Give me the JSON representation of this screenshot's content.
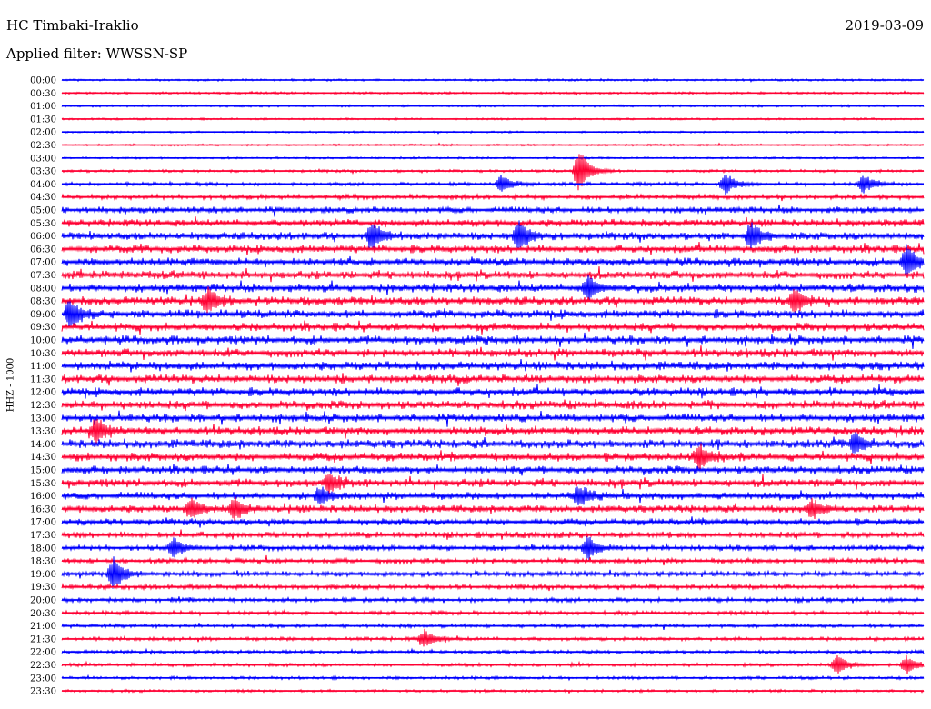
{
  "header": {
    "station": "HC Timbaki-Iraklio",
    "date": "2019-03-09",
    "filter": "Applied filter: WWSSN-SP"
  },
  "chart_data": {
    "type": "line",
    "title": "HC Timbaki-Iraklio",
    "ylabel": "HHZ - 1000",
    "row_labels": [
      "00:00",
      "00:30",
      "01:00",
      "01:30",
      "02:00",
      "02:30",
      "03:00",
      "03:30",
      "04:00",
      "04:30",
      "05:00",
      "05:30",
      "06:00",
      "06:30",
      "07:00",
      "07:30",
      "08:00",
      "08:30",
      "09:00",
      "09:30",
      "10:00",
      "10:30",
      "11:00",
      "11:30",
      "12:00",
      "12:30",
      "13:00",
      "13:30",
      "14:00",
      "14:30",
      "15:00",
      "15:30",
      "16:00",
      "16:30",
      "17:00",
      "17:30",
      "18:00",
      "18:30",
      "19:00",
      "19:30",
      "20:00",
      "20:30",
      "21:00",
      "21:30",
      "22:00",
      "22:30",
      "23:00",
      "23:30"
    ],
    "activity": [
      0.25,
      0.25,
      0.25,
      0.22,
      0.2,
      0.22,
      0.22,
      0.3,
      0.4,
      0.55,
      0.75,
      0.85,
      0.9,
      0.95,
      0.95,
      0.95,
      1.0,
      1.0,
      1.0,
      1.0,
      1.0,
      1.0,
      1.0,
      1.0,
      1.0,
      1.0,
      1.0,
      1.0,
      1.0,
      1.0,
      0.95,
      0.95,
      0.9,
      0.85,
      0.8,
      0.75,
      0.65,
      0.6,
      0.6,
      0.55,
      0.5,
      0.45,
      0.42,
      0.4,
      0.38,
      0.38,
      0.35,
      0.3
    ],
    "events": [
      {
        "row": 7,
        "x": 0.6,
        "amp": 3.2
      },
      {
        "row": 8,
        "x": 0.77,
        "amp": 1.5
      },
      {
        "row": 8,
        "x": 0.51,
        "amp": 1.3
      },
      {
        "row": 8,
        "x": 0.93,
        "amp": 1.3
      },
      {
        "row": 12,
        "x": 0.36,
        "amp": 2.0
      },
      {
        "row": 12,
        "x": 0.53,
        "amp": 2.2
      },
      {
        "row": 12,
        "x": 0.8,
        "amp": 2.0
      },
      {
        "row": 14,
        "x": 0.98,
        "amp": 2.2
      },
      {
        "row": 16,
        "x": 0.61,
        "amp": 1.8
      },
      {
        "row": 17,
        "x": 0.17,
        "amp": 1.8
      },
      {
        "row": 17,
        "x": 0.85,
        "amp": 1.8
      },
      {
        "row": 18,
        "x": 0.01,
        "amp": 2.0
      },
      {
        "row": 27,
        "x": 0.04,
        "amp": 1.6
      },
      {
        "row": 28,
        "x": 0.92,
        "amp": 1.5
      },
      {
        "row": 29,
        "x": 0.74,
        "amp": 1.8
      },
      {
        "row": 31,
        "x": 0.31,
        "amp": 1.3
      },
      {
        "row": 32,
        "x": 0.3,
        "amp": 1.3
      },
      {
        "row": 32,
        "x": 0.6,
        "amp": 1.4
      },
      {
        "row": 33,
        "x": 0.15,
        "amp": 1.6
      },
      {
        "row": 33,
        "x": 0.2,
        "amp": 1.6
      },
      {
        "row": 33,
        "x": 0.87,
        "amp": 1.4
      },
      {
        "row": 36,
        "x": 0.13,
        "amp": 1.4
      },
      {
        "row": 36,
        "x": 0.61,
        "amp": 1.6
      },
      {
        "row": 38,
        "x": 0.06,
        "amp": 2.4
      },
      {
        "row": 43,
        "x": 0.42,
        "amp": 1.3
      },
      {
        "row": 45,
        "x": 0.9,
        "amp": 1.5
      },
      {
        "row": 45,
        "x": 0.98,
        "amp": 1.3
      }
    ],
    "colors": [
      "#0000ff",
      "#ff0033"
    ],
    "grid": false,
    "legend": "none"
  }
}
